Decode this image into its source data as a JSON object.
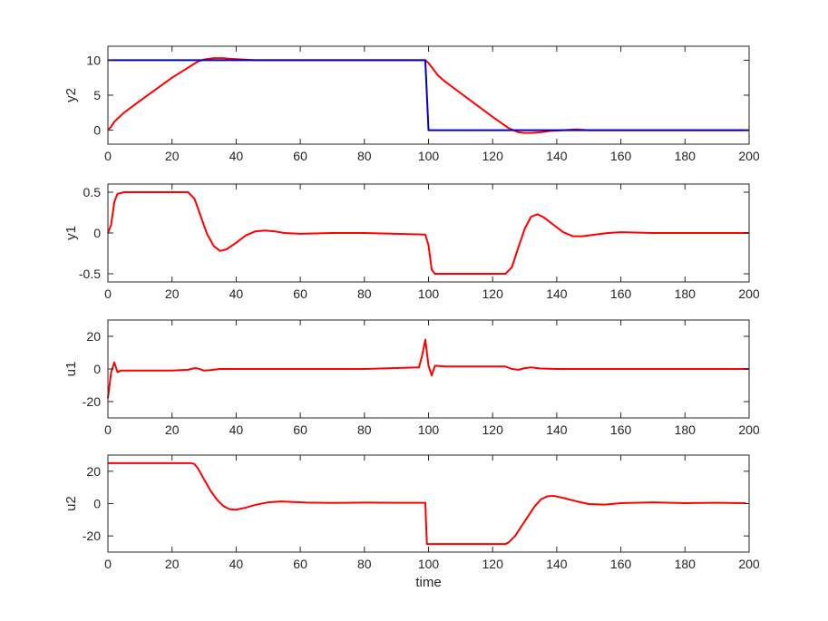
{
  "figure": {
    "background": "#ffffff",
    "axis_color": "#262626"
  },
  "chart_data": [
    {
      "type": "line",
      "ylabel": "y2",
      "xlabel": "",
      "xlim": [
        0,
        200
      ],
      "ylim": [
        -2,
        12
      ],
      "xticks": [
        0,
        20,
        40,
        60,
        80,
        100,
        120,
        140,
        160,
        180,
        200
      ],
      "yticks": [
        0,
        5,
        10
      ],
      "series": [
        {
          "color": "#ff0000",
          "x": [
            0,
            1,
            2,
            5,
            10,
            20,
            28,
            30,
            33,
            36,
            38,
            42,
            46,
            50,
            60,
            80,
            99,
            100,
            101,
            103,
            105,
            110,
            115,
            120,
            125,
            128,
            130,
            132,
            135,
            138,
            142,
            146,
            150,
            170,
            200
          ],
          "y": [
            0,
            0.5,
            1.2,
            2.5,
            4.2,
            7.5,
            9.8,
            10.1,
            10.3,
            10.3,
            10.2,
            10.1,
            10.0,
            10.0,
            10.0,
            10.0,
            10.0,
            9.6,
            9.0,
            7.8,
            7.0,
            5.3,
            3.6,
            1.9,
            0.3,
            -0.3,
            -0.4,
            -0.4,
            -0.3,
            -0.1,
            0.0,
            0.1,
            0.0,
            0.0,
            0.0
          ]
        },
        {
          "color": "#0000cc",
          "x": [
            0,
            99,
            100,
            200
          ],
          "y": [
            10,
            10,
            0,
            0
          ]
        }
      ]
    },
    {
      "type": "line",
      "ylabel": "y1",
      "xlabel": "",
      "xlim": [
        0,
        200
      ],
      "ylim": [
        -0.6,
        0.6
      ],
      "xticks": [
        0,
        20,
        40,
        60,
        80,
        100,
        120,
        140,
        160,
        180,
        200
      ],
      "yticks": [
        -0.5,
        0,
        0.5
      ],
      "ytick_labels": [
        "-0.5",
        "0",
        "0.5"
      ],
      "series": [
        {
          "color": "#ff0000",
          "x": [
            0,
            1,
            2,
            3,
            5,
            10,
            20,
            25,
            27,
            29,
            31,
            33,
            35,
            37,
            40,
            43,
            46,
            49,
            52,
            55,
            60,
            70,
            80,
            99,
            100,
            101,
            102,
            105,
            110,
            120,
            124,
            126,
            128,
            130,
            132,
            134,
            136,
            139,
            142,
            145,
            148,
            152,
            156,
            160,
            170,
            180,
            200
          ],
          "y": [
            0,
            0.1,
            0.38,
            0.48,
            0.5,
            0.5,
            0.5,
            0.5,
            0.42,
            0.2,
            -0.02,
            -0.16,
            -0.22,
            -0.2,
            -0.12,
            -0.03,
            0.02,
            0.03,
            0.02,
            0.0,
            -0.01,
            0.0,
            0.0,
            -0.02,
            -0.15,
            -0.45,
            -0.5,
            -0.5,
            -0.5,
            -0.5,
            -0.5,
            -0.42,
            -0.18,
            0.05,
            0.2,
            0.23,
            0.19,
            0.1,
            0.01,
            -0.04,
            -0.04,
            -0.02,
            0.0,
            0.01,
            0.0,
            0.0,
            0.0
          ]
        }
      ]
    },
    {
      "type": "line",
      "ylabel": "u1",
      "xlabel": "",
      "xlim": [
        0,
        200
      ],
      "ylim": [
        -30,
        30
      ],
      "xticks": [
        0,
        20,
        40,
        60,
        80,
        100,
        120,
        140,
        160,
        180,
        200
      ],
      "yticks": [
        -20,
        0,
        20
      ],
      "series": [
        {
          "color": "#ff0000",
          "x": [
            0,
            1,
            2,
            3,
            4,
            5,
            7,
            10,
            20,
            25,
            27,
            28,
            30,
            32,
            35,
            40,
            60,
            80,
            97,
            98,
            99,
            100,
            101,
            102,
            105,
            110,
            120,
            124,
            126,
            128,
            130,
            132,
            135,
            140,
            160,
            200
          ],
          "y": [
            -18,
            -2,
            4,
            -2,
            -1,
            -1,
            -1,
            -1,
            -1,
            -0.5,
            0.5,
            0.3,
            -1,
            -0.7,
            0,
            0,
            0,
            0,
            1,
            8,
            18,
            2,
            -4,
            2,
            1.5,
            1.5,
            1.5,
            1.5,
            0,
            -0.5,
            0.5,
            1,
            0.3,
            0,
            0,
            0
          ]
        }
      ]
    },
    {
      "type": "line",
      "ylabel": "u2",
      "xlabel": "time",
      "xlim": [
        0,
        200
      ],
      "ylim": [
        -30,
        30
      ],
      "xticks": [
        0,
        20,
        40,
        60,
        80,
        100,
        120,
        140,
        160,
        180,
        200
      ],
      "yticks": [
        -20,
        0,
        20
      ],
      "series": [
        {
          "color": "#ff0000",
          "x": [
            0,
            20,
            26,
            27,
            28,
            30,
            32,
            34,
            36,
            38,
            40,
            43,
            46,
            50,
            54,
            58,
            62,
            70,
            80,
            90,
            99,
            99.5,
            105,
            115,
            124,
            125,
            127,
            129,
            131,
            133,
            135,
            137,
            139,
            142,
            146,
            150,
            155,
            160,
            170,
            180,
            190,
            199
          ],
          "y": [
            25,
            25,
            25,
            24.5,
            22,
            15,
            8,
            2.5,
            -1.5,
            -3.5,
            -3.8,
            -2.5,
            -0.8,
            0.8,
            1.3,
            1.0,
            0.6,
            0.4,
            0.6,
            0.5,
            0.5,
            -25,
            -25,
            -25,
            -25,
            -24,
            -20,
            -14,
            -8,
            -2,
            2.5,
            4.5,
            4.8,
            3.5,
            1.5,
            -0.3,
            -0.6,
            0.3,
            0.8,
            0.3,
            0.5,
            0.3
          ]
        }
      ]
    }
  ]
}
